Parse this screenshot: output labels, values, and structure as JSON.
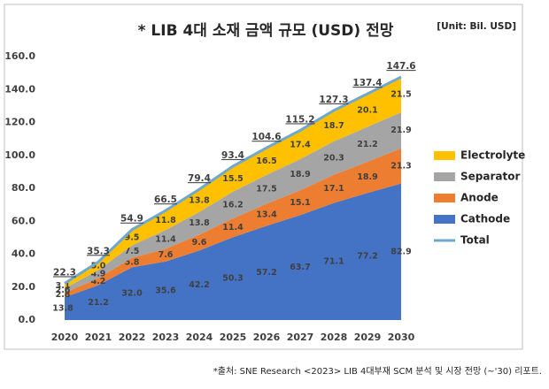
{
  "chart_data": {
    "type": "stacked-area",
    "title": "* LIB 4대 소재 금액 규모 (USD) 전망",
    "unit_label": "[Unit: Bil. USD]",
    "footnote": "*출처:  SNE Research <2023> LIB 4대부재 SCM 분석 및 시장 전망 (~'30) 리포트.",
    "categories": [
      "2020",
      "2021",
      "2022",
      "2023",
      "2024",
      "2025",
      "2026",
      "2027",
      "2028",
      "2029",
      "2030"
    ],
    "series": [
      {
        "name": "Cathode",
        "color": "#4472c4",
        "values": [
          13.8,
          21.2,
          32.0,
          35.6,
          42.2,
          50.3,
          57.2,
          63.7,
          71.1,
          77.2,
          82.9
        ],
        "value_labels": [
          "13.8",
          "21.2",
          "32.0",
          "35.6",
          "42.2",
          "50.3",
          "57.2",
          "63.7",
          "71.1",
          "77.2",
          "82.9"
        ]
      },
      {
        "name": "Anode",
        "color": "#ed7d31",
        "values": [
          2.8,
          4.2,
          5.8,
          7.6,
          9.6,
          11.4,
          13.4,
          15.1,
          17.1,
          18.9,
          21.3
        ],
        "value_labels": [
          "2.8",
          "4.2",
          "5.8",
          "7.6",
          "9.6",
          "11.4",
          "13.4",
          "15.1",
          "17.1",
          "18.9",
          "21.3"
        ]
      },
      {
        "name": "Separator",
        "color": "#a5a5a5",
        "values": [
          2.6,
          4.9,
          7.5,
          11.4,
          13.8,
          16.2,
          17.5,
          18.9,
          20.3,
          21.2,
          21.9
        ],
        "value_labels": [
          "2.6",
          "4.9",
          "7.5",
          "11.4",
          "13.8",
          "16.2",
          "17.5",
          "18.9",
          "20.3",
          "21.2",
          "21.9"
        ]
      },
      {
        "name": "Electrolyte",
        "color": "#ffc000",
        "values": [
          3.1,
          5.0,
          9.5,
          11.8,
          13.8,
          15.5,
          16.5,
          17.4,
          18.7,
          20.1,
          21.5
        ],
        "value_labels": [
          "3.1",
          "5.0",
          "9.5",
          "11.8",
          "13.8",
          "15.5",
          "16.5",
          "17.4",
          "18.7",
          "20.1",
          "21.5"
        ]
      }
    ],
    "total": {
      "name": "Total",
      "color": "#6fa8cf",
      "values": [
        22.3,
        35.3,
        54.9,
        66.5,
        79.4,
        93.4,
        104.6,
        115.2,
        127.3,
        137.4,
        147.6
      ],
      "value_labels": [
        "22.3",
        "35.3",
        "54.9",
        "66.5",
        "79.4",
        "93.4",
        "104.6",
        "115.2",
        "127.3",
        "137.4",
        "147.6"
      ]
    },
    "ylim": [
      0,
      160
    ],
    "yticks": [
      {
        "value": 0,
        "label": "0.0"
      },
      {
        "value": 20,
        "label": "20.0"
      },
      {
        "value": 40,
        "label": "40.0"
      },
      {
        "value": 60,
        "label": "60.0"
      },
      {
        "value": 80,
        "label": "80.0"
      },
      {
        "value": 100,
        "label": "100.0"
      },
      {
        "value": 120,
        "label": "120.0"
      },
      {
        "value": 140,
        "label": "140.0"
      },
      {
        "value": 160,
        "label": "160.0"
      }
    ],
    "grid": false
  }
}
